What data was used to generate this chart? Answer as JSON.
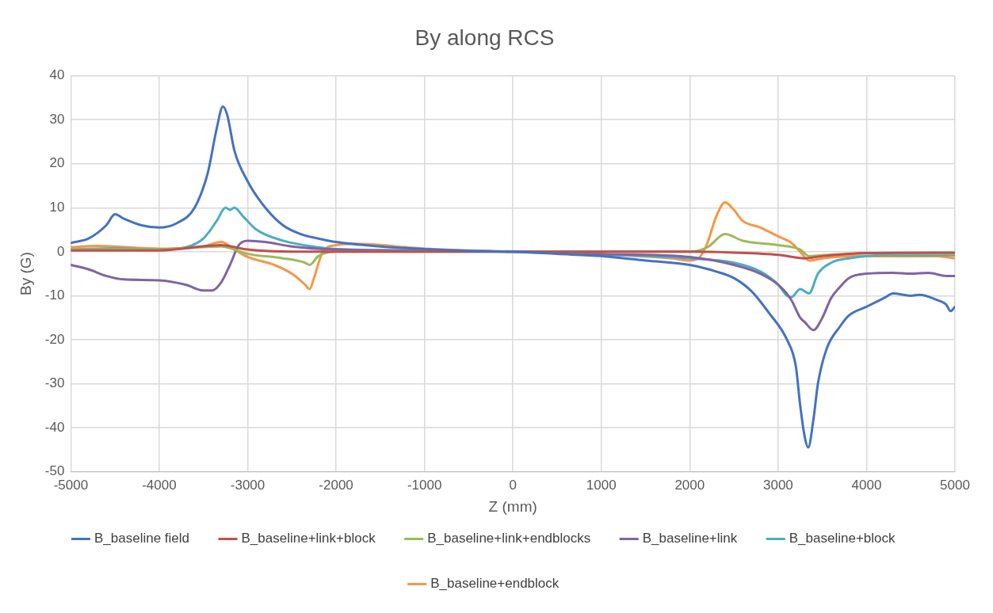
{
  "chart_data": {
    "type": "line",
    "title": "By along RCS",
    "xlabel": "Z (mm)",
    "ylabel": "By (G)",
    "xlim": [
      -5000,
      5000
    ],
    "xticks": [
      -5000,
      -4000,
      -3000,
      -2000,
      -1000,
      0,
      1000,
      2000,
      3000,
      4000,
      5000
    ],
    "ylim": [
      -50,
      40
    ],
    "yticks": [
      -50,
      -40,
      -30,
      -20,
      -10,
      0,
      10,
      20,
      30,
      40
    ],
    "grid": true,
    "legend": "bottom",
    "marker": "none",
    "line_style": "solid",
    "series": [
      {
        "name": "B_baseline field",
        "color": "#4472c4",
        "x": [
          -5000,
          -4800,
          -4600,
          -4500,
          -4400,
          -4200,
          -4000,
          -3800,
          -3600,
          -3450,
          -3350,
          -3280,
          -3230,
          -3150,
          -3000,
          -2800,
          -2600,
          -2400,
          -2200,
          -2000,
          -1500,
          -1000,
          -500,
          0,
          500,
          1000,
          1500,
          2000,
          2300,
          2500,
          2700,
          2900,
          3100,
          3200,
          3250,
          3300,
          3340,
          3400,
          3450,
          3550,
          3700,
          3800,
          4000,
          4200,
          4300,
          4500,
          4600,
          4800,
          4900,
          4950,
          5000
        ],
        "values": [
          2,
          3,
          6,
          8.5,
          7.5,
          6,
          5.5,
          6.5,
          10,
          18,
          28,
          33,
          31,
          23,
          16,
          10,
          6,
          4,
          3,
          2.2,
          1.2,
          0.6,
          0.2,
          0,
          -0.5,
          -1,
          -2,
          -3,
          -4.5,
          -6,
          -9,
          -14,
          -20,
          -26,
          -35,
          -42,
          -44.5,
          -38,
          -30,
          -22,
          -17,
          -14.5,
          -12.5,
          -10.5,
          -9.5,
          -10,
          -9.8,
          -11,
          -12,
          -13.5,
          -12.5
        ]
      },
      {
        "name": "B_baseline+link+block",
        "color": "#c0504d",
        "x": [
          -5000,
          -4000,
          -3300,
          -3000,
          -2500,
          0,
          2000,
          2500,
          3000,
          3300,
          3500,
          4000,
          5000
        ],
        "values": [
          0.3,
          0.3,
          1.5,
          0.5,
          0,
          0,
          0,
          -0.2,
          -0.7,
          -1.5,
          -1,
          -0.3,
          -0.2
        ]
      },
      {
        "name": "B_baseline+link+endblocks",
        "color": "#9bbb59",
        "x": [
          -5000,
          -4000,
          -3300,
          -3000,
          -2600,
          -2350,
          -2300,
          -2200,
          -2000,
          0,
          2000,
          2200,
          2400,
          2600,
          3000,
          3250,
          3350,
          3500,
          4000,
          5000
        ],
        "values": [
          0.5,
          0.5,
          1.2,
          -0.5,
          -1.5,
          -2.5,
          -3,
          -1,
          0,
          0,
          0,
          1,
          4,
          2.5,
          1.5,
          0.5,
          -1,
          -0.8,
          -0.4,
          -0.5
        ]
      },
      {
        "name": "B_baseline+link",
        "color": "#8064a2",
        "x": [
          -5000,
          -4800,
          -4600,
          -4400,
          -4000,
          -3700,
          -3500,
          -3400,
          -3300,
          -3200,
          -3100,
          -3000,
          -2800,
          -2500,
          -2000,
          0,
          1000,
          2000,
          2500,
          2800,
          3000,
          3150,
          3250,
          3300,
          3400,
          3500,
          3600,
          3700,
          3800,
          4000,
          4300,
          4500,
          4700,
          4900,
          5000
        ],
        "values": [
          -3,
          -4,
          -5.5,
          -6.3,
          -6.5,
          -7.5,
          -8.8,
          -8.8,
          -7,
          -3,
          1.5,
          2.5,
          2.2,
          1.2,
          0.5,
          0,
          -0.5,
          -1.2,
          -3,
          -5,
          -7.5,
          -11,
          -15,
          -16,
          -17.8,
          -15,
          -10.5,
          -8,
          -6,
          -5,
          -4.8,
          -5,
          -4.8,
          -5.5,
          -5.5
        ]
      },
      {
        "name": "B_baseline+block",
        "color": "#4bacc6",
        "x": [
          -5000,
          -4500,
          -4000,
          -3700,
          -3500,
          -3350,
          -3250,
          -3200,
          -3150,
          -3050,
          -2900,
          -2600,
          -2200,
          -2000,
          -1000,
          0,
          1000,
          2000,
          2500,
          2800,
          3000,
          3100,
          3150,
          3250,
          3350,
          3450,
          3600,
          3800,
          4200,
          5000
        ],
        "values": [
          0.5,
          0.8,
          0.5,
          1,
          3,
          7,
          10,
          9.5,
          10,
          8,
          5,
          2.5,
          1,
          0.6,
          0.3,
          0,
          -0.6,
          -1.5,
          -2.5,
          -4.5,
          -7.5,
          -10,
          -10.3,
          -8.5,
          -9.5,
          -5,
          -2.5,
          -1.5,
          -0.8,
          -0.8
        ]
      },
      {
        "name": "B_baseline+endblock",
        "color": "#f79646",
        "x": [
          -5000,
          -4700,
          -4000,
          -3500,
          -3300,
          -3150,
          -3000,
          -2700,
          -2500,
          -2350,
          -2300,
          -2250,
          -2150,
          -2000,
          -1800,
          -1000,
          0,
          1000,
          1800,
          2000,
          2100,
          2200,
          2300,
          2400,
          2500,
          2600,
          2800,
          3000,
          3150,
          3250,
          3350,
          3500,
          3800,
          4500,
          4800,
          5000
        ],
        "values": [
          1,
          1.3,
          0.7,
          1.2,
          2.2,
          0.5,
          -1.2,
          -3,
          -5,
          -7.5,
          -8.5,
          -6,
          0,
          1.5,
          1.8,
          0.7,
          0,
          -0.6,
          -1.5,
          -2,
          -1.5,
          2,
          8,
          11.2,
          9.5,
          7,
          5.5,
          3.5,
          2,
          0,
          -2,
          -1.5,
          -1,
          -1,
          -1,
          -1.5
        ]
      }
    ]
  }
}
